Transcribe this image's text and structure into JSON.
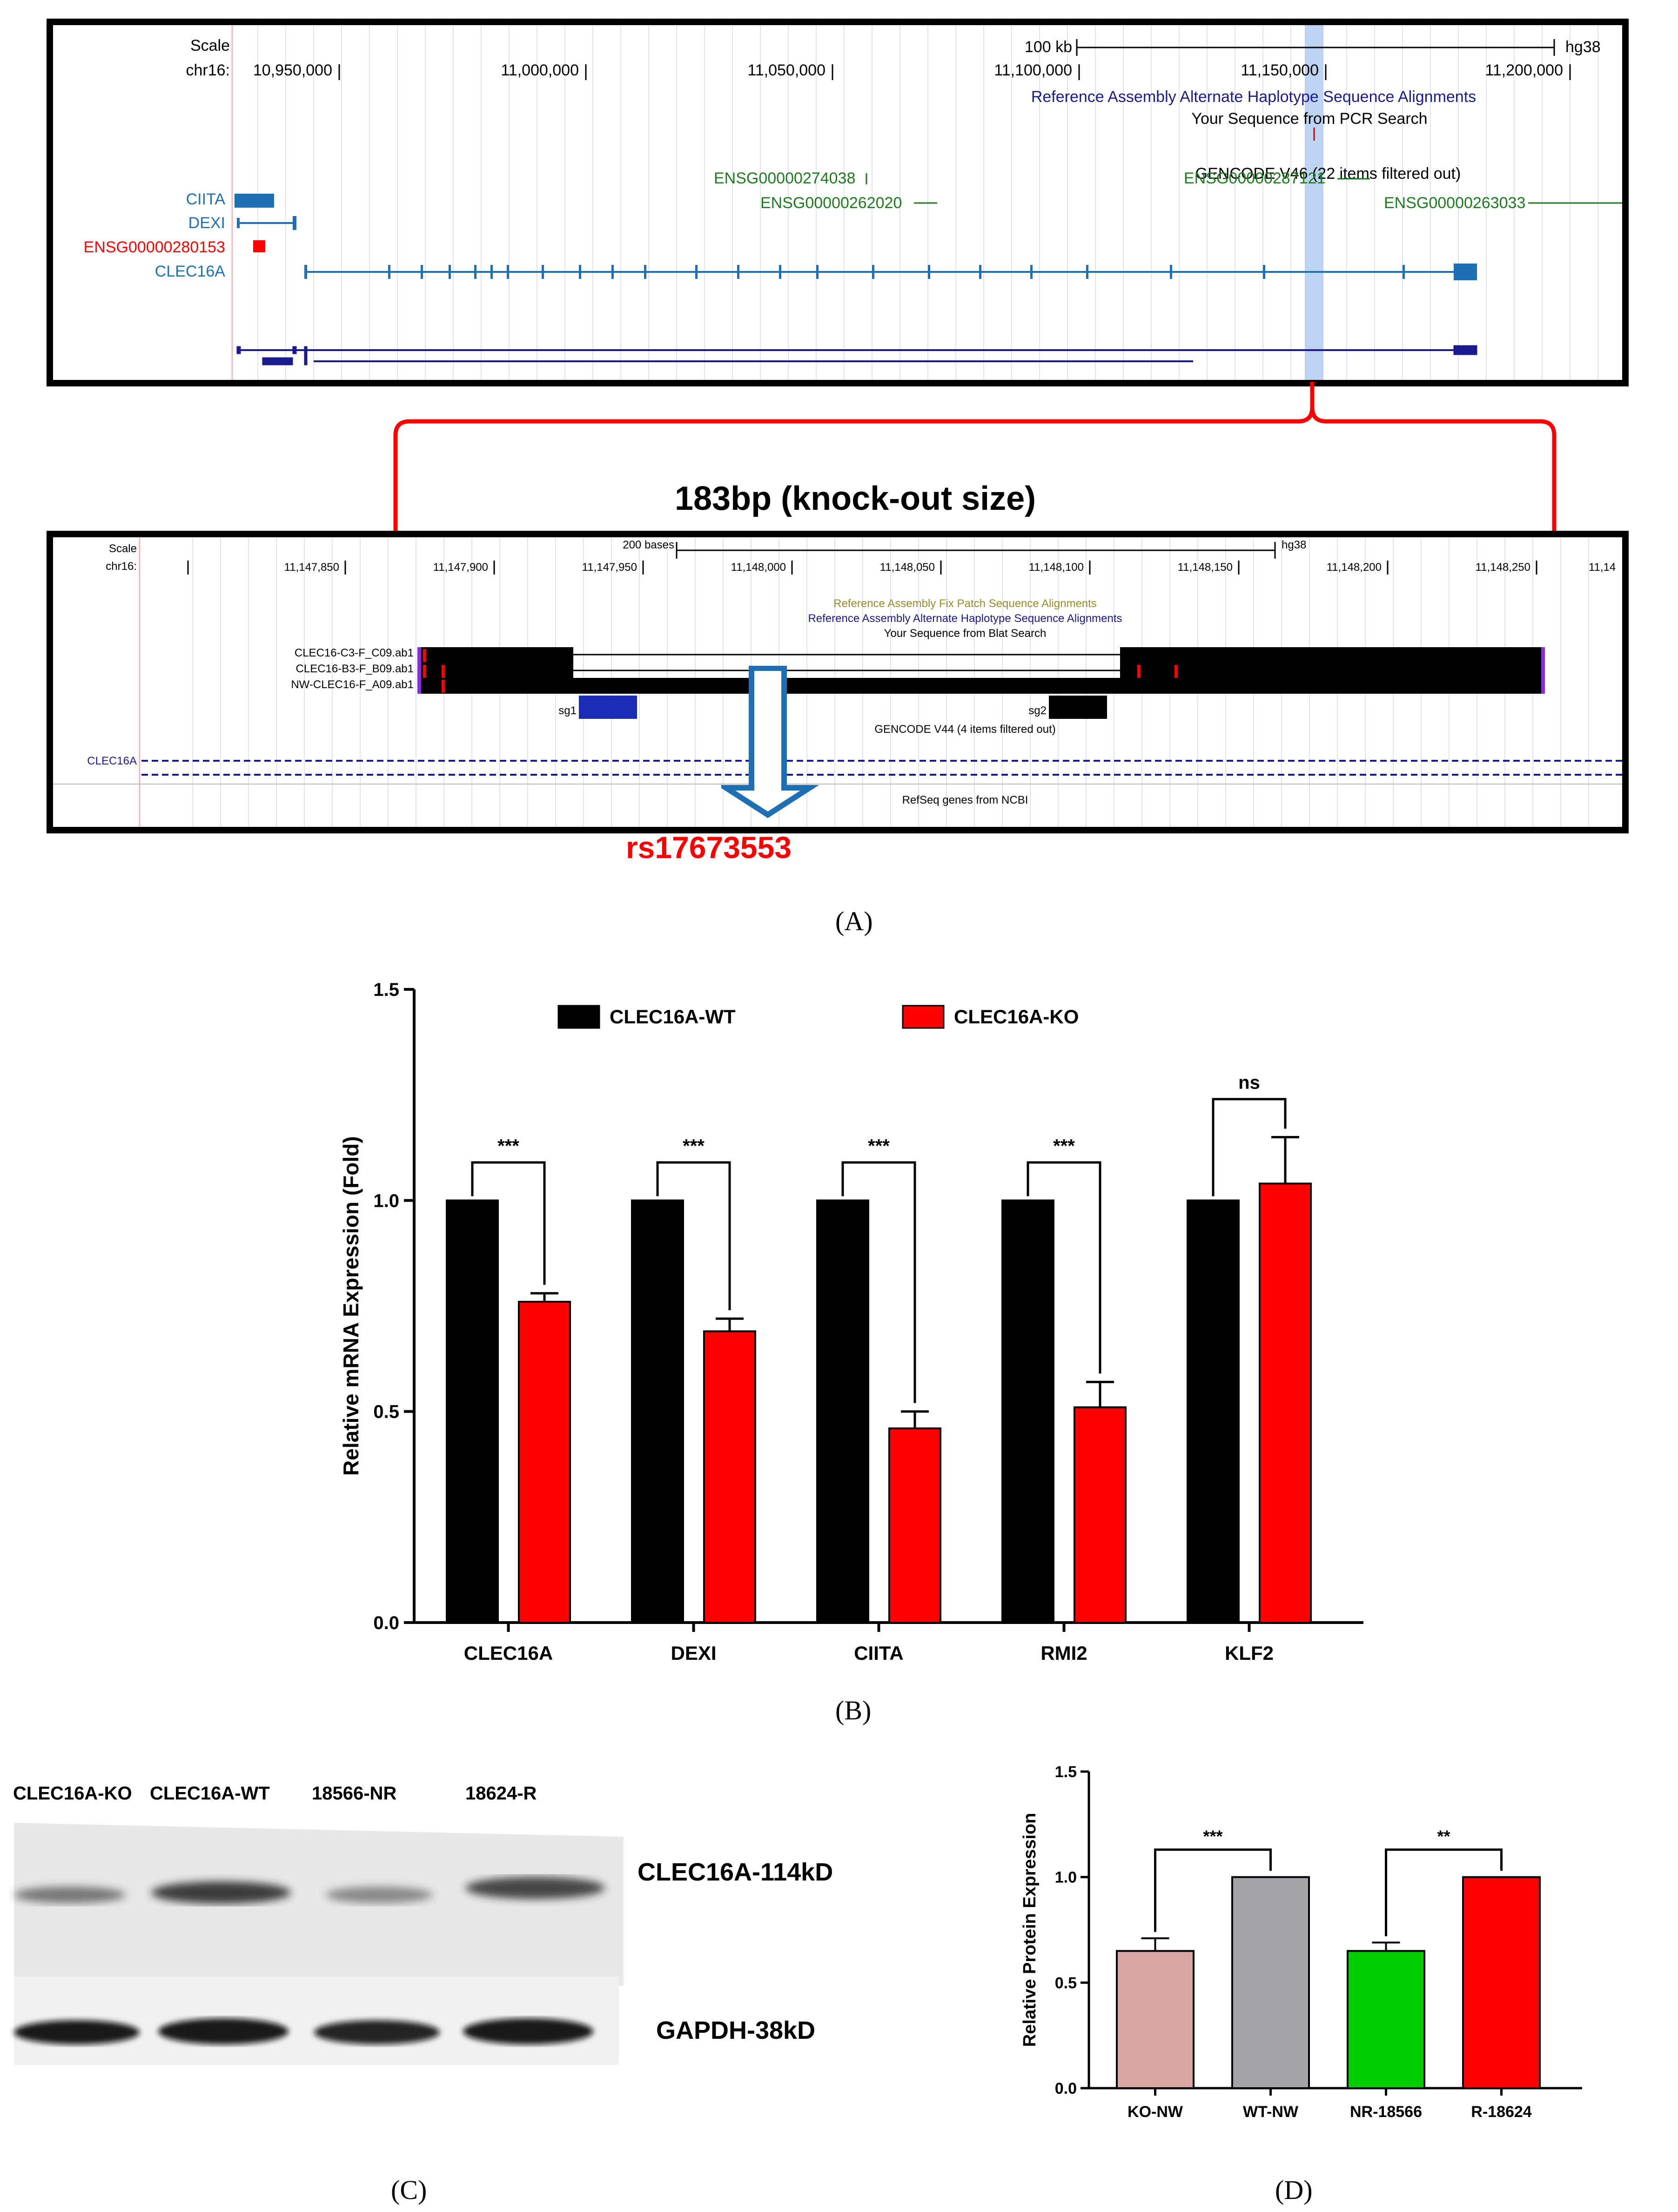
{
  "colors": {
    "wt": "#000000",
    "ko": "#ff0000",
    "ucsc_blue": "#1f6fb5",
    "ucsc_green": "#1f7a1f",
    "ucsc_red": "#ff0000",
    "navy": "#1a1a8c",
    "highlight": "#bcd4f2",
    "sig_red": "#ff0000",
    "bar_ko_nw": "#d9a5a5",
    "bar_wt_nw": "#a3a3a8",
    "bar_nr": "#00cc00",
    "bar_r": "#ff0000"
  },
  "panel_labels": {
    "a": "(A)",
    "b": "(B)",
    "c": "(C)",
    "d": "(D)"
  },
  "browser1": {
    "scale_label": "Scale",
    "chrom_label": "chr16:",
    "scale_bar_label": "100 kb",
    "assembly": "hg38",
    "ticks": [
      "10,950,000",
      "11,000,000",
      "11,050,000",
      "11,100,000",
      "11,150,000",
      "11,200,000"
    ],
    "track_alt_haplotype": "Reference Assembly Alternate Haplotype Sequence Alignments",
    "track_pcr": "Your Sequence from PCR Search",
    "track_gencode": "GENCODE V46 (22 items filtered out)",
    "genes": {
      "ciita": "CIITA",
      "dexi": "DEXI",
      "ensg_280153": "ENSG00000280153",
      "clec16a": "CLEC16A",
      "ensg_274038": "ENSG00000274038",
      "ensg_262020": "ENSG00000262020",
      "ensg_287121": "ENSG00000287121",
      "ensg_263033": "ENSG00000263033"
    }
  },
  "knockout_label": "183bp (knock-out size)",
  "browser2": {
    "scale_label": "Scale",
    "chrom_label": "chr16:",
    "scale_bar_label": "200 bases",
    "assembly": "hg38",
    "ticks": [
      "11,147,850",
      "11,147,900",
      "11,147,950",
      "11,148,000",
      "11,148,050",
      "11,148,100",
      "11,148,150",
      "11,148,200",
      "11,148,250",
      "11,14"
    ],
    "track_fix_patch": "Reference Assembly Fix Patch Sequence Alignments",
    "track_alt_haplotype": "Reference Assembly Alternate Haplotype Sequence Alignments",
    "track_blat": "Your Sequence from Blat Search",
    "reads": [
      "CLEC16-C3-F_C09.ab1",
      "CLEC16-B3-F_B09.ab1",
      "NW-CLEC16-F_A09.ab1"
    ],
    "sg1": "sg1",
    "sg2": "sg2",
    "track_gencode": "GENCODE V44 (4 items filtered out)",
    "gene_label": "CLEC16A",
    "track_refseq": "RefSeq genes from NCBI"
  },
  "snp_label": "rs17673553",
  "chart_data": [
    {
      "type": "bar",
      "panel": "B",
      "ylabel": "Relative mRNA Expression (Fold)",
      "ylim": [
        0,
        1.5
      ],
      "yticks": [
        "0.0",
        "0.5",
        "1.0",
        "1.5"
      ],
      "categories": [
        "CLEC16A",
        "DEXI",
        "CIITA",
        "RMI2",
        "KLF2"
      ],
      "series": [
        {
          "name": "CLEC16A-WT",
          "values": [
            1.0,
            1.0,
            1.0,
            1.0,
            1.0
          ],
          "errors": [
            0,
            0,
            0,
            0,
            0
          ]
        },
        {
          "name": "CLEC16A-KO",
          "values": [
            0.76,
            0.69,
            0.46,
            0.51,
            1.04
          ],
          "errors": [
            0.02,
            0.03,
            0.04,
            0.06,
            0.11
          ]
        }
      ],
      "significance": [
        "***",
        "***",
        "***",
        "***",
        "ns"
      ],
      "legend_position": "top"
    },
    {
      "type": "bar",
      "panel": "D",
      "ylabel": "Relative Protein Expression",
      "ylim": [
        0,
        1.5
      ],
      "yticks": [
        "0.0",
        "0.5",
        "1.0",
        "1.5"
      ],
      "categories": [
        "KO-NW",
        "WT-NW",
        "NR-18566",
        "R-18624"
      ],
      "values": [
        0.65,
        1.0,
        0.65,
        1.0
      ],
      "errors": [
        0.06,
        0,
        0.04,
        0
      ],
      "comparisons": [
        {
          "pair": [
            "KO-NW",
            "WT-NW"
          ],
          "label": "***"
        },
        {
          "pair": [
            "NR-18566",
            "R-18624"
          ],
          "label": "**"
        }
      ]
    }
  ],
  "western_blot": {
    "lanes": [
      "CLEC16A-KO",
      "CLEC16A-WT",
      "18566-NR",
      "18624-R"
    ],
    "band_top": "CLEC16A-114kD",
    "band_bottom": "GAPDH-38kD",
    "band_top_intensity": [
      0.65,
      0.9,
      0.55,
      0.85
    ],
    "band_bottom_intensity": [
      0.95,
      0.95,
      0.9,
      0.95
    ]
  }
}
